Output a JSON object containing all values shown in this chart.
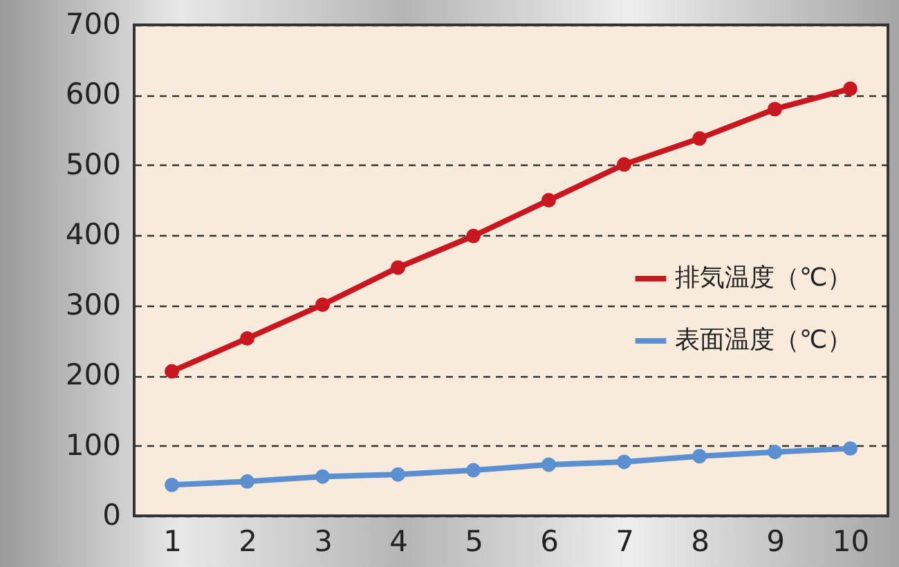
{
  "chart_data": {
    "type": "line",
    "categories": [
      "1",
      "2",
      "3",
      "4",
      "5",
      "6",
      "7",
      "8",
      "9",
      "10"
    ],
    "series": [
      {
        "name": "排気温度（℃）",
        "color": "#c8171e",
        "values": [
          206,
          253,
          301,
          354,
          399,
          450,
          501,
          538,
          580,
          609
        ]
      },
      {
        "name": "表面温度（℃）",
        "color": "#5b8fd0",
        "values": [
          44,
          49,
          56,
          59,
          65,
          73,
          77,
          85,
          91,
          96
        ]
      }
    ],
    "ylim": [
      0,
      700
    ],
    "yticks": [
      0,
      100,
      200,
      300,
      400,
      500,
      600,
      700
    ],
    "grid": "y",
    "legend": "right",
    "marker": "circle",
    "line_style": "solid"
  }
}
